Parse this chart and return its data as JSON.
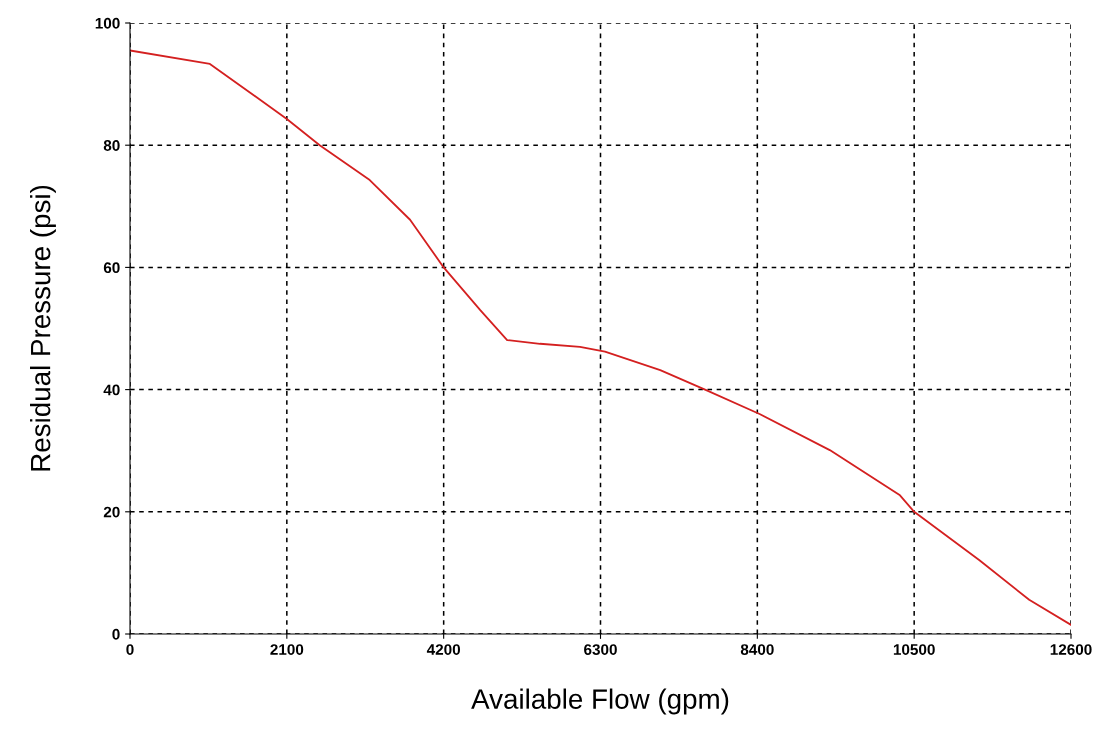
{
  "chart_data": {
    "type": "line",
    "xlabel": "Available Flow (gpm)",
    "ylabel": "Residual Pressure (psi)",
    "series": [
      {
        "color": "#d42020",
        "x": [
          0,
          1070,
          2100,
          2540,
          3210,
          3750,
          4200,
          4690,
          5050,
          5490,
          6025,
          6360,
          7100,
          7700,
          8430,
          9370,
          10310,
          10500,
          11370,
          12040,
          12600
        ],
        "values": [
          95.5,
          93.3,
          84.3,
          80,
          74.3,
          67.8,
          60,
          53,
          48.1,
          47.5,
          47,
          46.2,
          43.2,
          40,
          36,
          30.1,
          22.7,
          20,
          12.1,
          5.6,
          1.5
        ]
      }
    ],
    "xlim": [
      0,
      12600
    ],
    "xticks": [
      0,
      2100,
      4200,
      6300,
      8400,
      10500,
      12600
    ],
    "ylim": [
      0,
      100
    ],
    "yticks": [
      0,
      20,
      40,
      60,
      80,
      100
    ],
    "grid": true,
    "line_style": "solid",
    "marker": "none"
  }
}
